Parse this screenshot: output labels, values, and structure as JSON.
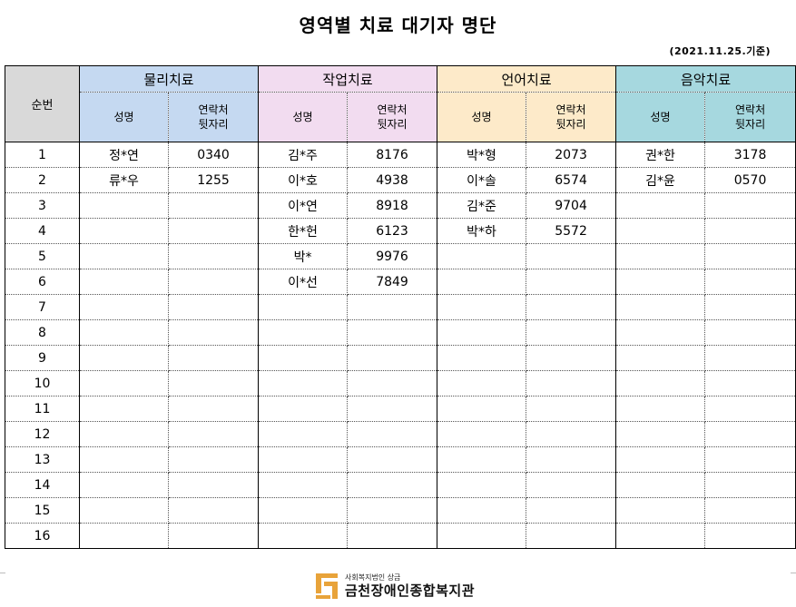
{
  "document": {
    "title": "영역별 치료 대기자 명단",
    "date_note": "(2021.11.25.기준)"
  },
  "table": {
    "number_header": "순번",
    "groups": [
      {
        "label": "물리치료",
        "name_header": "성명",
        "phone_header": "연락처\n뒷자리",
        "color": "#c5d9f1"
      },
      {
        "label": "작업치료",
        "name_header": "성명",
        "phone_header": "연락처\n뒷자리",
        "color": "#f2dcf0"
      },
      {
        "label": "언어치료",
        "name_header": "성명",
        "phone_header": "연락처\n뒷자리",
        "color": "#fdeac9"
      },
      {
        "label": "음악치료",
        "name_header": "성명",
        "phone_header": "연락처\n뒷자리",
        "color": "#a6d8df"
      }
    ],
    "rows": [
      {
        "no": "1",
        "cells": [
          [
            "정*연",
            "0340"
          ],
          [
            "김*주",
            "8176"
          ],
          [
            "박*형",
            "2073"
          ],
          [
            "권*한",
            "3178"
          ]
        ]
      },
      {
        "no": "2",
        "cells": [
          [
            "류*우",
            "1255"
          ],
          [
            "이*호",
            "4938"
          ],
          [
            "이*솔",
            "6574"
          ],
          [
            "김*윤",
            "0570"
          ]
        ]
      },
      {
        "no": "3",
        "cells": [
          [
            "",
            ""
          ],
          [
            "이*연",
            "8918"
          ],
          [
            "김*준",
            "9704"
          ],
          [
            "",
            ""
          ]
        ]
      },
      {
        "no": "4",
        "cells": [
          [
            "",
            ""
          ],
          [
            "한*헌",
            "6123"
          ],
          [
            "박*하",
            "5572"
          ],
          [
            "",
            ""
          ]
        ]
      },
      {
        "no": "5",
        "cells": [
          [
            "",
            ""
          ],
          [
            "박*",
            "9976"
          ],
          [
            "",
            ""
          ],
          [
            "",
            ""
          ]
        ]
      },
      {
        "no": "6",
        "cells": [
          [
            "",
            ""
          ],
          [
            "이*선",
            "7849"
          ],
          [
            "",
            ""
          ],
          [
            "",
            ""
          ]
        ]
      },
      {
        "no": "7",
        "cells": [
          [
            "",
            ""
          ],
          [
            "",
            ""
          ],
          [
            "",
            ""
          ],
          [
            "",
            ""
          ]
        ]
      },
      {
        "no": "8",
        "cells": [
          [
            "",
            ""
          ],
          [
            "",
            ""
          ],
          [
            "",
            ""
          ],
          [
            "",
            ""
          ]
        ]
      },
      {
        "no": "9",
        "cells": [
          [
            "",
            ""
          ],
          [
            "",
            ""
          ],
          [
            "",
            ""
          ],
          [
            "",
            ""
          ]
        ]
      },
      {
        "no": "10",
        "cells": [
          [
            "",
            ""
          ],
          [
            "",
            ""
          ],
          [
            "",
            ""
          ],
          [
            "",
            ""
          ]
        ]
      },
      {
        "no": "11",
        "cells": [
          [
            "",
            ""
          ],
          [
            "",
            ""
          ],
          [
            "",
            ""
          ],
          [
            "",
            ""
          ]
        ]
      },
      {
        "no": "12",
        "cells": [
          [
            "",
            ""
          ],
          [
            "",
            ""
          ],
          [
            "",
            ""
          ],
          [
            "",
            ""
          ]
        ]
      },
      {
        "no": "13",
        "cells": [
          [
            "",
            ""
          ],
          [
            "",
            ""
          ],
          [
            "",
            ""
          ],
          [
            "",
            ""
          ]
        ]
      },
      {
        "no": "14",
        "cells": [
          [
            "",
            ""
          ],
          [
            "",
            ""
          ],
          [
            "",
            ""
          ],
          [
            "",
            ""
          ]
        ]
      },
      {
        "no": "15",
        "cells": [
          [
            "",
            ""
          ],
          [
            "",
            ""
          ],
          [
            "",
            ""
          ],
          [
            "",
            ""
          ]
        ]
      },
      {
        "no": "16",
        "cells": [
          [
            "",
            ""
          ],
          [
            "",
            ""
          ],
          [
            "",
            ""
          ],
          [
            "",
            ""
          ]
        ]
      }
    ]
  },
  "footer": {
    "org_small": "사회복지법인 상금",
    "org_name": "금천장애인종합복지관",
    "logo_icon": "org-logo-icon",
    "logo_color": "#e8a33a"
  }
}
